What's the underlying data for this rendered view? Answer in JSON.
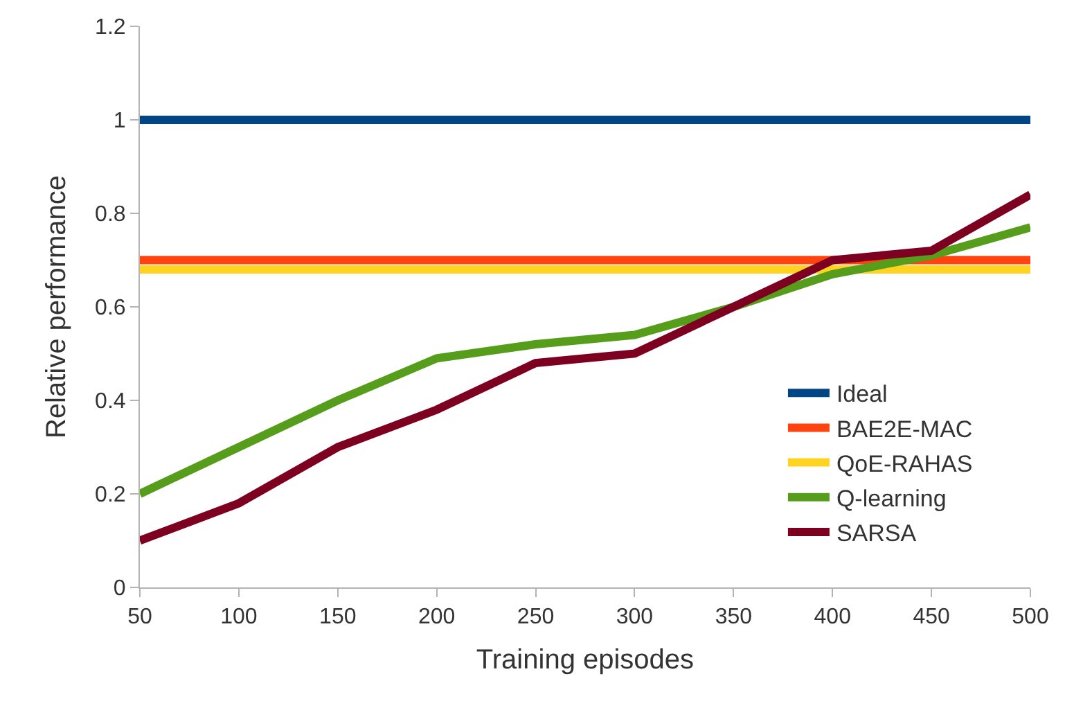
{
  "chart_data": {
    "type": "line",
    "xlabel": "Training episodes",
    "ylabel": "Relative performance",
    "x": [
      50,
      100,
      150,
      200,
      250,
      300,
      350,
      400,
      450,
      500
    ],
    "xlim": [
      50,
      500
    ],
    "xticks": [
      50,
      100,
      150,
      200,
      250,
      300,
      350,
      400,
      450,
      500
    ],
    "ylim": [
      0,
      1.2
    ],
    "yticks": [
      0,
      0.2,
      0.4,
      0.6,
      0.8,
      1,
      1.2
    ],
    "grid": false,
    "legend": "right",
    "marker": "none",
    "line_style": "solid",
    "series": [
      {
        "name": "Ideal",
        "color": "#004586",
        "values": [
          1,
          1,
          1,
          1,
          1,
          1,
          1,
          1,
          1,
          1
        ]
      },
      {
        "name": "BAE2E-MAC",
        "color": "#ff420e",
        "values": [
          0.7,
          0.7,
          0.7,
          0.7,
          0.7,
          0.7,
          0.7,
          0.7,
          0.7,
          0.7
        ]
      },
      {
        "name": "QoE-RAHAS",
        "color": "#ffd320",
        "values": [
          0.68,
          0.68,
          0.68,
          0.68,
          0.68,
          0.68,
          0.68,
          0.68,
          0.68,
          0.68
        ]
      },
      {
        "name": "Q-learning",
        "color": "#579d1c",
        "values": [
          0.2,
          0.3,
          0.4,
          0.49,
          0.52,
          0.54,
          0.6,
          0.67,
          0.71,
          0.77
        ]
      },
      {
        "name": "SARSA",
        "color": "#7e0021",
        "values": [
          0.1,
          0.18,
          0.3,
          0.38,
          0.48,
          0.5,
          0.6,
          0.7,
          0.72,
          0.84
        ]
      }
    ]
  }
}
